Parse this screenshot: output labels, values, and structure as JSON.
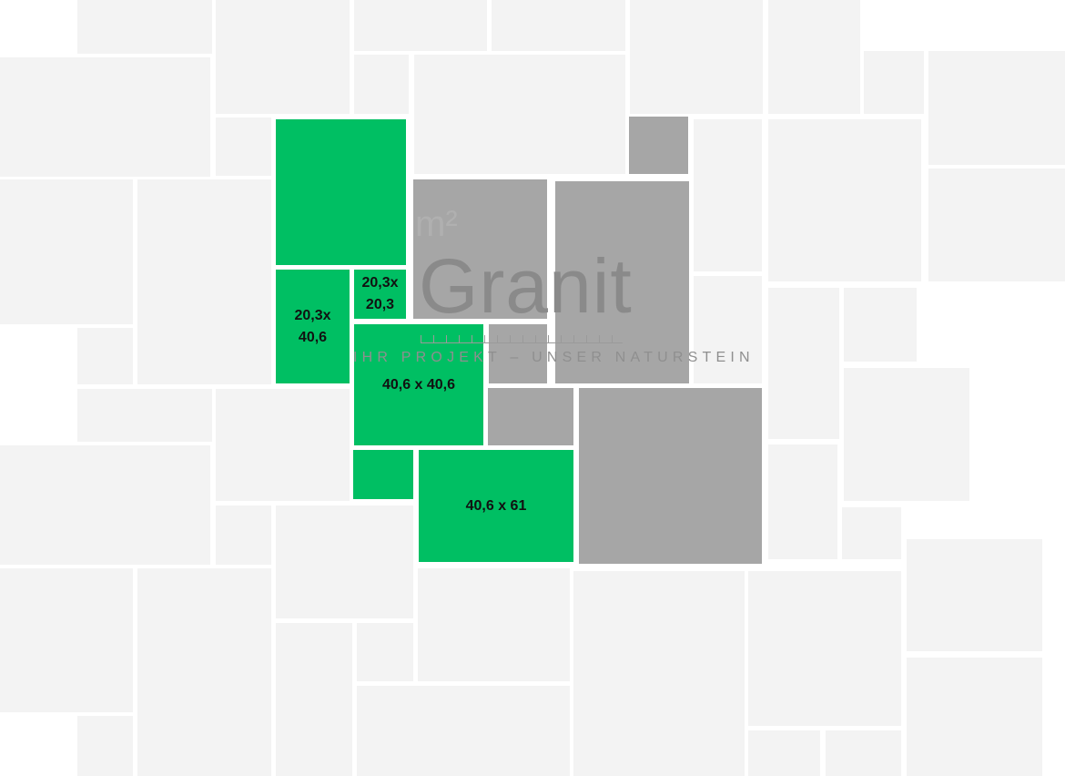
{
  "colors": {
    "background_tile": "#f3f3f3",
    "existing_tile": "#a6a6a6",
    "highlight_tile": "#00bf63"
  },
  "tiles_highlighted": [
    {
      "label": ""
    },
    {
      "label": "20,3x\n40,6"
    },
    {
      "label": "20,3x\n20,3"
    },
    {
      "label": "40,6 x 40,6"
    },
    {
      "label": ""
    },
    {
      "label": "40,6 x 61"
    }
  ],
  "logo": {
    "brand": "m²Granit",
    "tagline": "IHR PROJEKT – UNSER NATURSTEIN"
  }
}
